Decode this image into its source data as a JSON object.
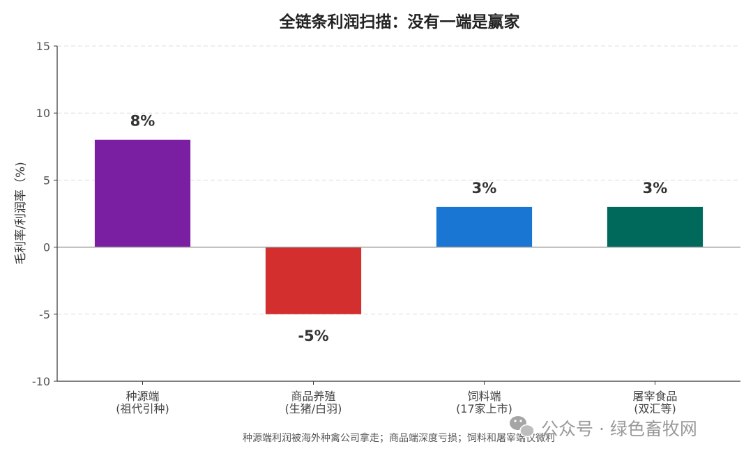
{
  "chart_data": {
    "type": "bar",
    "title": "全链条利润扫描：没有一端是赢家",
    "ylabel": "毛利率/利润率（%)",
    "xlabel": "",
    "ylim": [
      -10,
      15
    ],
    "yticks": [
      -10,
      -5,
      0,
      5,
      10,
      15
    ],
    "grid": true,
    "categories": [
      {
        "name": "种源端",
        "sub": "(祖代引种)"
      },
      {
        "name": "商品养殖",
        "sub": "(生猪/白羽)"
      },
      {
        "name": "饲料端",
        "sub": "(17家上市)"
      },
      {
        "name": "屠宰食品",
        "sub": "(双汇等)"
      }
    ],
    "values": [
      8,
      -5,
      3,
      3
    ],
    "value_labels": [
      "8%",
      "-5%",
      "3%",
      "3%"
    ],
    "colors": [
      "#7b1fa2",
      "#d32f2f",
      "#1976d2",
      "#00695c"
    ]
  },
  "caption": "种源端利润被海外种禽公司拿走；商品端深度亏损；饲料和屠宰端仅微利",
  "watermark": {
    "text": "公众号 · 绿色畜牧网",
    "icon": "wechat-icon"
  }
}
